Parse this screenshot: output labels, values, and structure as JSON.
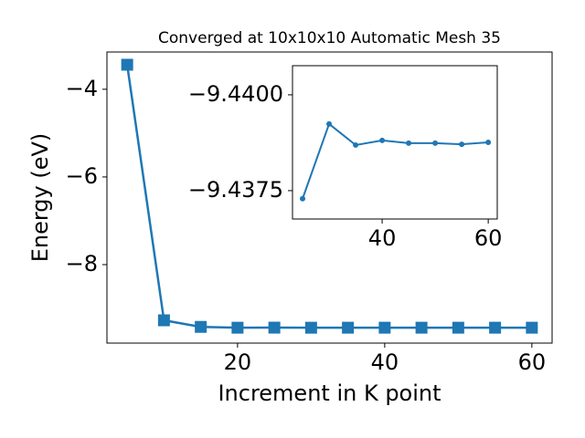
{
  "chart_data": [
    {
      "type": "line",
      "title": "Converged at 10x10x10 Automatic Mesh 35",
      "x_label": "Increment in K point",
      "y_label": "Energy (eV)",
      "x": [
        5,
        10,
        15,
        20,
        25,
        30,
        35,
        40,
        45,
        50,
        55,
        60
      ],
      "series": [
        {
          "color": "#1f77b4",
          "marker": "square",
          "values": [
            -3.44,
            -9.27,
            -9.42,
            -9.439,
            -9.4373,
            -9.4392,
            -9.4387,
            -9.4388,
            -9.4387,
            -9.4387,
            -9.4387,
            -9.4388
          ]
        }
      ],
      "xlim": [
        2.25,
        62.75
      ],
      "xticks": [
        20,
        40,
        60
      ],
      "ylim": [
        -9.79,
        -3.15
      ],
      "yticks": [
        {
          "value": -8,
          "label": "−8"
        },
        {
          "value": -6,
          "label": "−6"
        },
        {
          "value": -4,
          "label": "−4"
        }
      ]
    },
    {
      "type": "line",
      "x": [
        25,
        30,
        35,
        40,
        45,
        50,
        55,
        60
      ],
      "series": [
        {
          "color": "#1f77b4",
          "marker": "circle",
          "values": [
            -9.43729,
            -9.43924,
            -9.43869,
            -9.43881,
            -9.43874,
            -9.43874,
            -9.43871,
            -9.43876
          ]
        }
      ],
      "xlim": [
        23.1,
        61.7
      ],
      "xticks": [
        40,
        60
      ],
      "ylim": [
        -9.43676,
        -9.44076
      ],
      "yticks": [
        {
          "value": -9.4375,
          "label": "−9.4375"
        },
        {
          "value": -9.44,
          "label": "−9.4400"
        }
      ]
    }
  ]
}
